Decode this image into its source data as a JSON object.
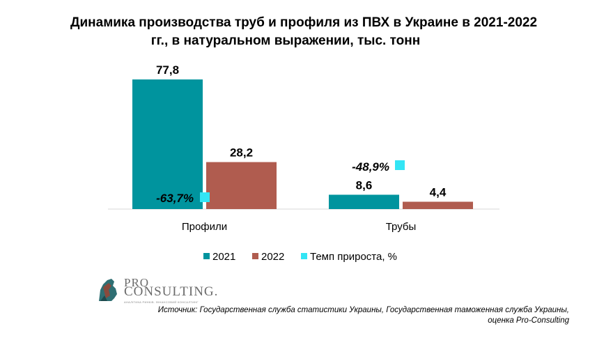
{
  "title_lines": [
    "Динамика производства труб и профиля из ПВХ в Украине в 2021-2022",
    "гг., в натуральном выражении, тыс. тонн"
  ],
  "chart_data": {
    "type": "bar",
    "categories": [
      "Профили",
      "Трубы"
    ],
    "series": [
      {
        "name": "2021",
        "values": [
          77.8,
          8.6
        ],
        "labels": [
          "77,8",
          "8,6"
        ],
        "color": "#00949e"
      },
      {
        "name": "2022",
        "values": [
          28.2,
          4.4
        ],
        "labels": [
          "28,2",
          "4,4"
        ],
        "color": "#b05c4f"
      }
    ],
    "growth": {
      "name": "Темп прироста, %",
      "values": [
        -63.7,
        -48.9
      ],
      "labels": [
        "-63,7%",
        "-48,9%"
      ],
      "color": "#33e5f5"
    },
    "ylim": [
      0,
      80
    ],
    "grid": false,
    "legend_position": "bottom"
  },
  "logo": {
    "line1": "PRO",
    "line2": "CONSULTING.",
    "tagline": "АНАЛІТИКА РИНКІВ. ФІНАНСОВИЙ КОНСАЛТИНГ"
  },
  "source_lines": [
    "Источник: Государственная служба статистики Украины, Государственная таможенная служба Украины,",
    "оценка Pro-Consulting"
  ]
}
